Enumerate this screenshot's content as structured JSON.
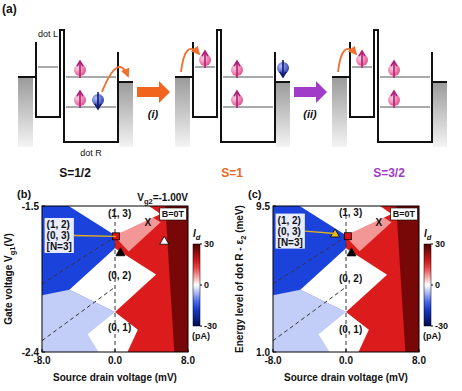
{
  "diagram": {
    "panel": "(a)",
    "dot_left": "dot L",
    "dot_right": "dot R",
    "states": [
      {
        "label": "S=1/2",
        "color": "#111111"
      },
      {
        "label": "S=1",
        "color": "#f0641e"
      },
      {
        "label": "S=3/2",
        "color": "#a03cc8"
      }
    ],
    "steps": [
      {
        "label": "(i)",
        "color": "#f0641e"
      },
      {
        "label": "(ii)",
        "color": "#a03cc8"
      }
    ]
  },
  "chart_data": [
    {
      "type": "heatmap",
      "panel": "(b)",
      "header": [
        {
          "text": "V"
        },
        {
          "text": "g2",
          "sub": true
        },
        {
          "text": "=-1.00V"
        }
      ],
      "field_label": "B=0T",
      "x_label": "Source drain voltage (mV)",
      "y_label": [
        {
          "text": "Gate voltage V"
        },
        {
          "text": "g1",
          "sub": true
        },
        {
          "text": "(V)"
        }
      ],
      "xlim": [
        -8,
        8
      ],
      "xticks": [
        {
          "value": -8,
          "label": "-8.0"
        },
        {
          "value": 0,
          "label": "0.0"
        },
        {
          "value": 8,
          "label": "8.0"
        }
      ],
      "ylim": [
        -2.4,
        -1.5
      ],
      "yticks": [
        -2.4,
        -1.5
      ],
      "colorbar": {
        "title": [
          {
            "text": "I"
          },
          {
            "text": "d",
            "sub": true
          }
        ],
        "unit": "(pA)",
        "range": [
          -30,
          30
        ],
        "ticks": [
          -30,
          0,
          30
        ]
      },
      "regions": [
        {
          "points": [
            [
              -8,
              -1.5
            ],
            [
              0,
              -1.5
            ],
            [
              0,
              -2.4
            ],
            [
              -8,
              -2.4
            ]
          ],
          "current": -16
        },
        {
          "points": [
            [
              -8,
              -2.05
            ],
            [
              -5,
              -2.016
            ],
            [
              0,
              -2.153
            ],
            [
              0,
              -2.4
            ],
            [
              -8,
              -2.4
            ]
          ],
          "current": -4
        },
        {
          "points": [
            [
              0,
              -1.5
            ],
            [
              8,
              -1.5
            ],
            [
              8,
              -2.4
            ],
            [
              0,
              -2.4
            ]
          ],
          "current": 16
        },
        {
          "points": [
            [
              5.5,
              -1.5
            ],
            [
              8,
              -1.5
            ],
            [
              8,
              -2.4
            ],
            [
              6.5,
              -2.4
            ]
          ],
          "current": 26
        },
        {
          "points": [
            [
              0,
              -1.69
            ],
            [
              3.5,
              -1.55
            ],
            [
              5,
              -1.6
            ],
            [
              1.5,
              -1.78
            ]
          ],
          "current": 7
        },
        {
          "points": [
            [
              0,
              -1.357
            ],
            [
              5,
              -1.549
            ],
            [
              0,
              -1.68
            ],
            [
              -6,
              -1.467
            ]
          ],
          "current": 0
        },
        {
          "points": [
            [
              0,
              -1.76
            ],
            [
              4.5,
              -1.923
            ],
            [
              0,
              -2.153
            ],
            [
              -5,
              -2.016
            ]
          ],
          "current": 0
        },
        {
          "points": [
            [
              0,
              -2.153
            ],
            [
              2.5,
              -2.263
            ],
            [
              0,
              -2.565
            ],
            [
              -3,
              -2.291
            ]
          ],
          "current": 0
        }
      ],
      "dashed_lines": [
        {
          "x": [
            0,
            0
          ],
          "y": [
            -2.4,
            -1.5
          ]
        },
        {
          "x": [
            -8,
            0
          ],
          "y": [
            -2.33,
            -2.0
          ]
        },
        {
          "x": [
            -8,
            0
          ],
          "y": [
            -1.98,
            -1.69
          ]
        }
      ],
      "markers": [
        {
          "x": 0.1,
          "y": -1.687,
          "marker": "square",
          "color": "#e01010"
        },
        {
          "x": 0.6,
          "y": -1.785,
          "marker": "triangle",
          "color": "#000000"
        },
        {
          "x": 5.4,
          "y": -1.714,
          "marker": "triangle",
          "color": "#ffffff"
        }
      ],
      "annotations": [
        {
          "text": "(1, 3)",
          "x": 0.5,
          "y": -1.545
        },
        {
          "text": "(0, 2)",
          "x": 0.5,
          "y": -1.93
        },
        {
          "text": "(0, 1)",
          "x": 0.5,
          "y": -2.25
        },
        {
          "text": "X",
          "x": 3.6,
          "y": -1.6
        }
      ],
      "callout": {
        "lines": [
          "(1, 2)",
          "(0, 3)",
          "[N=3]"
        ],
        "x": -7.5,
        "y": -1.58,
        "marker": 0
      }
    },
    {
      "type": "heatmap",
      "panel": "(c)",
      "field_label": "B=0T",
      "x_label": "Source drain voltage (mV)",
      "y_label": [
        {
          "text": "Energy level of dot R - ε"
        },
        {
          "text": "2",
          "sub": true
        },
        {
          "text": " (meV)"
        }
      ],
      "xlim": [
        -8,
        8
      ],
      "xticks": [
        {
          "value": -8,
          "label": "-8.0"
        },
        {
          "value": 0,
          "label": "0.0"
        },
        {
          "value": 8,
          "label": "8.0"
        }
      ],
      "ylim": [
        1,
        9.5
      ],
      "yticks": [
        {
          "value": 1,
          "label": "1.0"
        },
        9.5
      ],
      "colorbar": {
        "title": [
          {
            "text": "I"
          },
          {
            "text": "d",
            "sub": true
          }
        ],
        "unit": "(pA)",
        "range": [
          -30,
          30
        ],
        "ticks": [
          -30,
          0,
          30
        ]
      },
      "regions": [
        {
          "points": [
            [
              -8,
              9.5
            ],
            [
              0,
              9.5
            ],
            [
              0,
              1
            ],
            [
              -8,
              1
            ]
          ],
          "current": -16
        },
        {
          "points": [
            [
              -8,
              4.31
            ],
            [
              -5,
              4.63
            ],
            [
              0,
              3.33
            ],
            [
              0,
              1
            ],
            [
              -8,
              1
            ]
          ],
          "current": -4
        },
        {
          "points": [
            [
              0,
              9.5
            ],
            [
              8,
              9.5
            ],
            [
              8,
              1
            ],
            [
              0,
              1
            ]
          ],
          "current": 16
        },
        {
          "points": [
            [
              5.5,
              9.5
            ],
            [
              8,
              9.5
            ],
            [
              8,
              1
            ],
            [
              6.5,
              1
            ]
          ],
          "current": 26
        },
        {
          "points": [
            [
              0,
              7.71
            ],
            [
              3.5,
              9.03
            ],
            [
              5,
              8.56
            ],
            [
              1.5,
              6.86
            ]
          ],
          "current": 7
        },
        {
          "points": [
            [
              0,
              10.85
            ],
            [
              5,
              9.04
            ],
            [
              0,
              7.8
            ],
            [
              -6,
              9.81
            ]
          ],
          "current": 0
        },
        {
          "points": [
            [
              0,
              7.04
            ],
            [
              4.5,
              5.5
            ],
            [
              0,
              3.33
            ],
            [
              -5,
              4.63
            ]
          ],
          "current": 0
        },
        {
          "points": [
            [
              0,
              3.33
            ],
            [
              2.5,
              2.29
            ],
            [
              0,
              -0.56
            ],
            [
              -3,
              2.03
            ]
          ],
          "current": 0
        }
      ],
      "dashed_lines": [
        {
          "x": [
            0,
            0
          ],
          "y": [
            1,
            9.5
          ]
        },
        {
          "x": [
            -8,
            0
          ],
          "y": [
            1.66,
            4.78
          ]
        },
        {
          "x": [
            -8,
            0
          ],
          "y": [
            4.97,
            7.71
          ]
        }
      ],
      "markers": [
        {
          "x": 0.2,
          "y": 7.74,
          "marker": "square",
          "color": "#e01010"
        },
        {
          "x": -1.2,
          "y": 7.9,
          "marker": "triangle",
          "color": "#e8c020"
        },
        {
          "x": 0.6,
          "y": 6.8,
          "marker": "triangle",
          "color": "#000000"
        }
      ],
      "annotations": [
        {
          "text": "(1, 3)",
          "x": 0.5,
          "y": 9.1
        },
        {
          "text": "(0, 2)",
          "x": 0.5,
          "y": 5.3
        },
        {
          "text": "(0, 1)",
          "x": 0.5,
          "y": 2.3
        },
        {
          "text": "X",
          "x": 3.6,
          "y": 8.55
        }
      ],
      "callout": {
        "lines": [
          "(1, 2)",
          "(0, 3)",
          "[N=3]"
        ],
        "x": -7.5,
        "y": 9.0,
        "marker": 1
      }
    }
  ]
}
